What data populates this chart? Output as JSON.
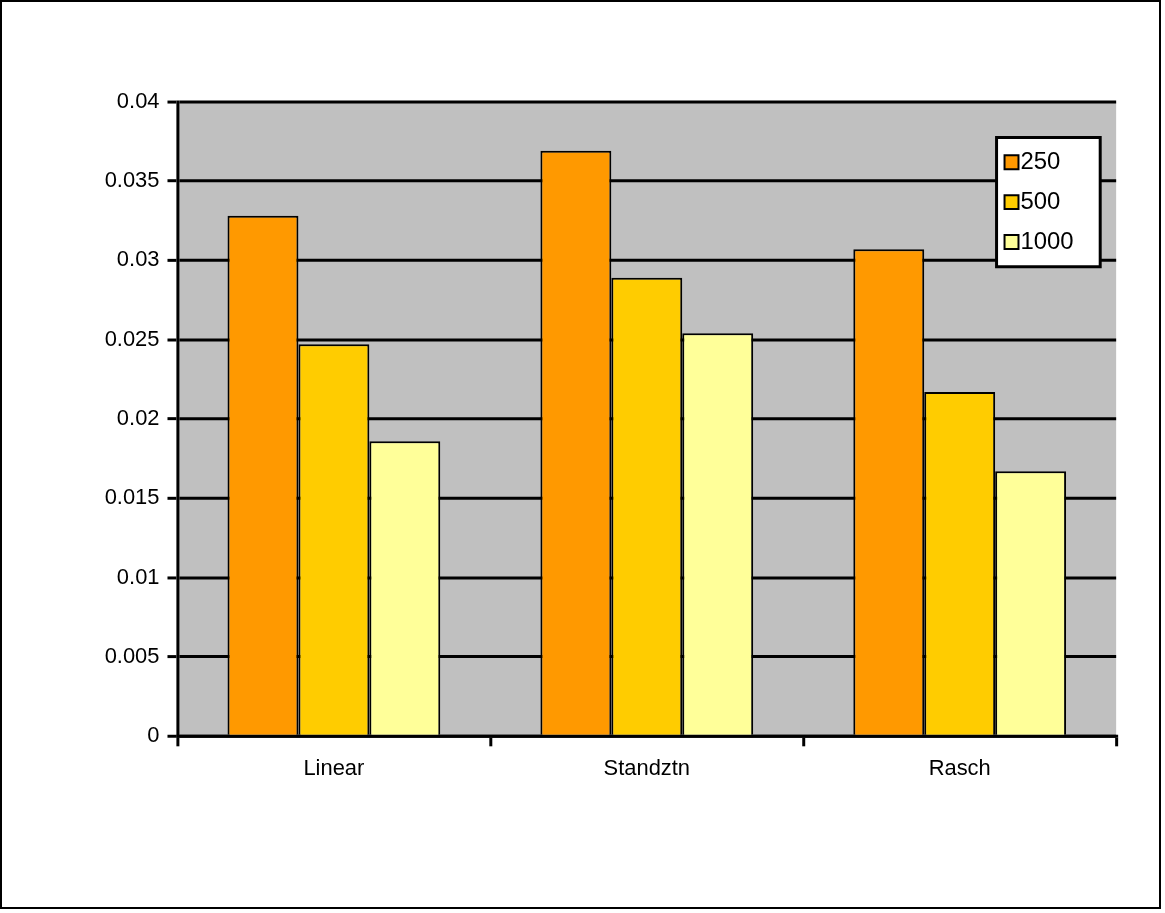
{
  "chart_data": {
    "type": "bar",
    "categories": [
      "Linear",
      "Standztn",
      "Rasch"
    ],
    "series": [
      {
        "name": "250",
        "color": "#ff9900",
        "values": [
          0.0328,
          0.0369,
          0.0307
        ]
      },
      {
        "name": "500",
        "color": "#ffcc00",
        "values": [
          0.0247,
          0.0289,
          0.0217
        ]
      },
      {
        "name": "1000",
        "color": "#ffff99",
        "values": [
          0.0186,
          0.0254,
          0.0167
        ]
      }
    ],
    "ylim": [
      0,
      0.04
    ],
    "yticks": [
      0,
      0.005,
      0.01,
      0.015,
      0.02,
      0.025,
      0.03,
      0.035,
      0.04
    ],
    "grid": "y",
    "legend": "top right"
  }
}
